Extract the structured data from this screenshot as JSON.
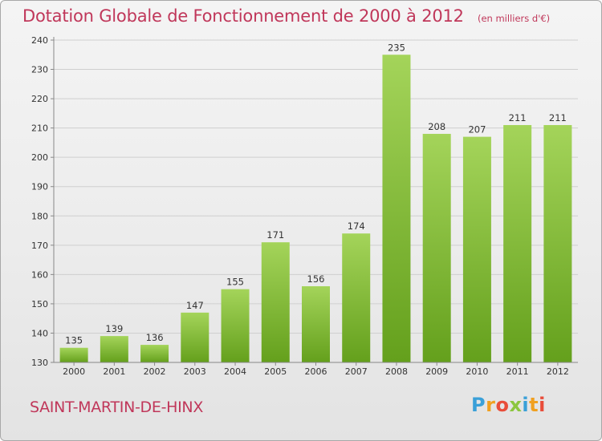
{
  "header": {
    "title": "Dotation Globale de Fonctionnement de 2000 à 2012",
    "subtitle": "(en milliers d'€)"
  },
  "footer": {
    "commune": "SAINT-MARTIN-DE-HINX",
    "logo": "Proxiti"
  },
  "colors": {
    "title": "#c0375a",
    "bar_top": "#a4d45a",
    "bar_bottom": "#64a01c",
    "grid": "#cfcfcf",
    "axis": "#888888"
  },
  "chart_data": {
    "type": "bar",
    "title": "Dotation Globale de Fonctionnement de 2000 à 2012",
    "subtitle": "(en milliers d'€)",
    "categories": [
      "2000",
      "2001",
      "2002",
      "2003",
      "2004",
      "2005",
      "2006",
      "2007",
      "2008",
      "2009",
      "2010",
      "2011",
      "2012"
    ],
    "values": [
      135,
      139,
      136,
      147,
      155,
      171,
      156,
      174,
      235,
      208,
      207,
      211,
      211
    ],
    "ylim": [
      130,
      240
    ],
    "yticks": [
      130,
      140,
      150,
      160,
      170,
      180,
      190,
      200,
      210,
      220,
      230,
      240
    ],
    "grid": true,
    "xlabel": "",
    "ylabel": ""
  }
}
